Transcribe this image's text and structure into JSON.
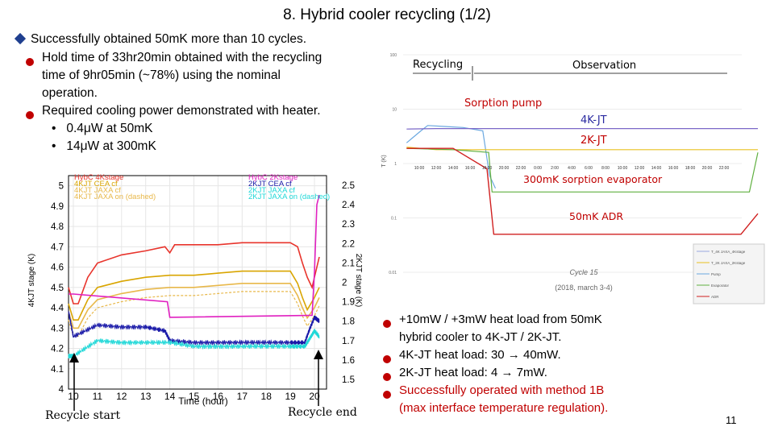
{
  "slide": {
    "title": "8. Hybrid cooler recycling (1/2)",
    "page_number": "11"
  },
  "bullets_top": {
    "main": "Successfully obtained 50mK more than 10 cycles.",
    "sub1_line1": "Hold time of 33hr20min obtained with the recycling",
    "sub1_line2": "time of 9hr05min (~78%) using the nominal",
    "sub1_line3": "operation.",
    "sub2": "Required cooling power demonstrated with heater.",
    "sub2a": "0.4μW at 50mK",
    "sub2b": "14μW at 300mK"
  },
  "bullets_bottom": {
    "b1_line1": "+10mW / +3mW heat load from 50mK",
    "b1_line2": "hybrid cooler to 4K-JT / 2K-JT.",
    "b2": "4K-JT heat load: 30 → 40mW.",
    "b3": "2K-JT heat load: 4 → 7mW.",
    "b4_line1": "Successfully operated with method 1B",
    "b4_line2": "(max interface temperature regulation)."
  },
  "left_plot": {
    "ylabel": "4KJT stage (K)",
    "y2label": "2KJT stage (K)",
    "xlabel": "Time (hour)",
    "legend_left": [
      "HybC 4Kstage",
      "4KJT CEA cf",
      "4KJT JAXA cf",
      "4KJT JAXA on (dashed)"
    ],
    "legend_right": [
      "HybC 2Kstage",
      "2KJT CEA cf",
      "2KJT JAXA cf",
      "2KJT JAXA on (dashed)"
    ],
    "caption_start": "Recycle start",
    "caption_end": "Recycle end",
    "colors": {
      "hyb4k": "#e8342c",
      "cea4k": "#d9a500",
      "jaxa4k": "#e8b84a",
      "hyb2k": "#e020c0",
      "cea2k": "#1818a8",
      "jaxa2k": "#20d8d8"
    }
  },
  "right_plot": {
    "labels": {
      "recycling": "Recycling",
      "observation": "Observation",
      "sorption_pump": "Sorption pump",
      "jt4k": "4K-JT",
      "jt2k": "2K-JT",
      "evap": "300mK sorption evaporator",
      "adr": "50mK ADR"
    },
    "legend": [
      "T_4K JAXA_4Kstage",
      "T_2K JAXA_2Kstage",
      "Pump",
      "Evaporator",
      "ADR"
    ],
    "cycle_line1": "Cycle 15",
    "cycle_line2": "(2018, march 3-4)",
    "ylabel": "T (K)",
    "colors": {
      "pump": "#6aa8e0",
      "jt4k": "#7b68c8",
      "jt2k": "#e8c020",
      "evap": "#60b040",
      "adr": "#d02020"
    }
  },
  "chart_data": [
    {
      "type": "line",
      "title": "",
      "xlabel": "Time (hour)",
      "ylabel": "4KJT stage (K)",
      "y2label": "2KJT stage (K)",
      "xlim": [
        9.8,
        20.5
      ],
      "ylim": [
        4.0,
        5.05
      ],
      "y2lim": [
        1.45,
        2.55
      ],
      "x_ticks": [
        "10",
        "11",
        "12",
        "13",
        "14",
        "15",
        "16",
        "17",
        "18",
        "19",
        "20"
      ],
      "y_ticks": [
        "4",
        "4.1",
        "4.2",
        "4.3",
        "4.4",
        "4.5",
        "4.6",
        "4.7",
        "4.8",
        "4.9",
        "5"
      ],
      "y2_ticks": [
        "1.5",
        "1.6",
        "1.7",
        "1.8",
        "1.9",
        "2",
        "2.1",
        "2.2",
        "2.3",
        "2.4",
        "2.5"
      ],
      "series": [
        {
          "name": "HybC 4Kstage",
          "axis": "left",
          "x": [
            9.8,
            10.0,
            10.2,
            10.6,
            11.0,
            12.0,
            13.0,
            13.8,
            14.0,
            14.2,
            15.0,
            16.0,
            17.0,
            18.0,
            19.0,
            19.3,
            19.5,
            19.7,
            19.9,
            20.0,
            20.2
          ],
          "y": [
            4.5,
            4.42,
            4.42,
            4.55,
            4.62,
            4.66,
            4.68,
            4.7,
            4.67,
            4.71,
            4.71,
            4.71,
            4.72,
            4.72,
            4.72,
            4.7,
            4.62,
            4.55,
            4.5,
            4.55,
            4.65
          ]
        },
        {
          "name": "4KJT CEA cf",
          "axis": "left",
          "x": [
            9.8,
            10.0,
            10.2,
            10.6,
            11.0,
            12.0,
            13.0,
            14.0,
            15.0,
            16.0,
            17.0,
            18.0,
            19.0,
            19.3,
            19.5,
            19.7,
            20.0,
            20.2
          ],
          "y": [
            4.42,
            4.34,
            4.34,
            4.44,
            4.5,
            4.53,
            4.55,
            4.56,
            4.56,
            4.57,
            4.58,
            4.58,
            4.58,
            4.52,
            4.45,
            4.39,
            4.45,
            4.5
          ]
        },
        {
          "name": "4KJT JAXA cf",
          "axis": "left",
          "x": [
            9.8,
            10.0,
            10.2,
            10.6,
            11.0,
            12.0,
            13.0,
            14.0,
            15.0,
            16.0,
            17.0,
            18.0,
            19.0,
            19.3,
            19.5,
            19.7,
            20.0,
            20.2
          ],
          "y": [
            4.38,
            4.3,
            4.3,
            4.39,
            4.44,
            4.47,
            4.49,
            4.5,
            4.5,
            4.51,
            4.52,
            4.52,
            4.52,
            4.46,
            4.4,
            4.35,
            4.4,
            4.45
          ]
        },
        {
          "name": "HybC 2Kstage",
          "axis": "right",
          "x": [
            9.8,
            10.0,
            13.9,
            14.0,
            19.8,
            19.9,
            20.0,
            20.1,
            20.2
          ],
          "y": [
            1.94,
            1.94,
            1.9,
            1.82,
            1.83,
            1.83,
            2.05,
            2.4,
            2.45
          ]
        },
        {
          "name": "2KJT CEA cf",
          "axis": "right",
          "x": [
            9.8,
            10.0,
            11.0,
            12.0,
            13.0,
            13.8,
            14.0,
            15.0,
            16.0,
            17.0,
            18.0,
            19.0,
            19.6,
            19.8,
            20.0,
            20.2
          ],
          "y": [
            1.85,
            1.72,
            1.78,
            1.77,
            1.77,
            1.75,
            1.7,
            1.69,
            1.69,
            1.69,
            1.69,
            1.69,
            1.69,
            1.76,
            1.82,
            1.8
          ]
        },
        {
          "name": "2KJT JAXA cf",
          "axis": "right",
          "x": [
            9.8,
            10.0,
            11.0,
            12.0,
            13.0,
            14.0,
            15.0,
            16.0,
            17.0,
            18.0,
            19.0,
            19.6,
            19.8,
            20.0,
            20.2
          ],
          "y": [
            1.62,
            1.62,
            1.7,
            1.69,
            1.69,
            1.69,
            1.67,
            1.67,
            1.67,
            1.67,
            1.67,
            1.67,
            1.71,
            1.75,
            1.72
          ]
        }
      ]
    },
    {
      "type": "line",
      "title": "Cycle 15 (2018, march 3-4)",
      "xlabel": "",
      "ylabel": "T (K)",
      "x_ticks": [
        "10:00",
        "12:00",
        "14:00",
        "16:00",
        "18:00",
        "20:00",
        "22:00",
        "0:00",
        "2:00",
        "4:00",
        "6:00",
        "8:00",
        "10:00",
        "12:00",
        "14:00",
        "16:00",
        "18:00",
        "20:00",
        "22:00"
      ],
      "y_ticks": [
        "100",
        "10",
        "1",
        "0.1",
        "0.01"
      ],
      "series": [
        {
          "name": "Pump",
          "values": [
            2.4,
            4.0,
            5.0,
            4.8,
            4.6,
            4.0,
            0.6,
            0.35
          ]
        },
        {
          "name": "T_4K JAXA_4Kstage",
          "values": [
            4.3,
            4.4,
            4.4,
            4.4,
            4.4
          ]
        },
        {
          "name": "T_2K JAXA_2Kstage",
          "values": [
            2.0,
            1.8,
            1.8,
            1.8,
            1.8
          ]
        },
        {
          "name": "Evaporator",
          "values": [
            1.9,
            1.8,
            1.6,
            0.3,
            0.3,
            0.3,
            1.6
          ]
        },
        {
          "name": "ADR",
          "values": [
            1.9,
            0.8,
            0.05,
            0.05,
            0.05,
            0.12
          ]
        }
      ]
    }
  ]
}
